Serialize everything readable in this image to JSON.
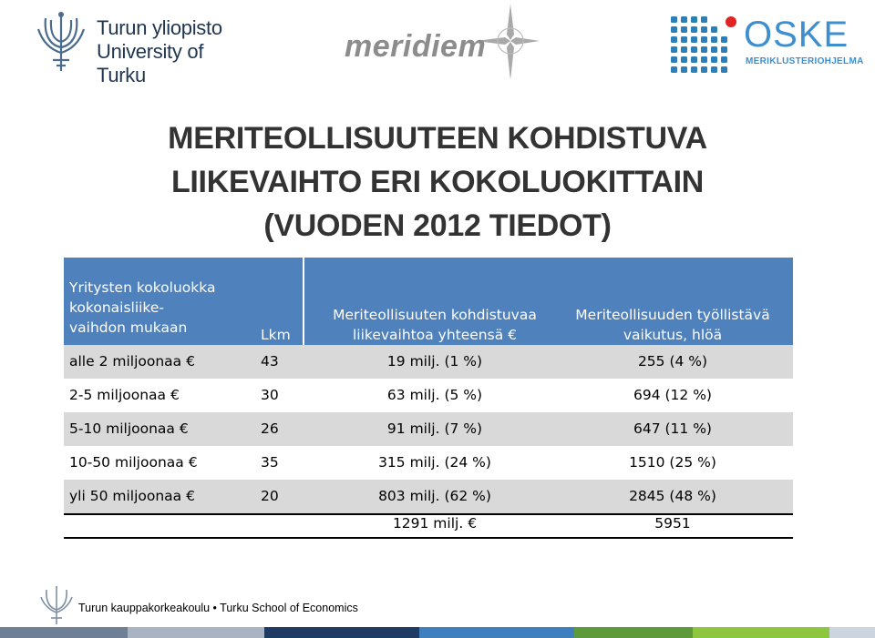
{
  "logos": {
    "utu": {
      "line1": "Turun yliopisto",
      "line2": "University of Turku"
    },
    "meridiem": {
      "text": "meridiem"
    },
    "oske": {
      "text": "OSKE",
      "subtitle": "MERIKLUSTERIOHJELMA"
    }
  },
  "title": {
    "line1": "MERITEOLLISUUTEEN KOHDISTUVA",
    "line2": "LIIKEVAIHTO ERI KOKOLUOKITTAIN",
    "line3": "(VUODEN 2012 TIEDOT)"
  },
  "table": {
    "headers": {
      "col1": [
        "Yritysten kokoluokka",
        "kokonaisliike-",
        "vaihdon mukaan"
      ],
      "col2": "Lkm",
      "col3": [
        "Meriteollisuuten kohdistuvaa",
        "liikevaihtoa yhteensä"
      ],
      "col4": [
        "Meriteollisuuden työllistävä",
        "vaikutus, hlöä"
      ]
    },
    "rows": [
      {
        "size": "alle 2 miljoonaa",
        "count": "43",
        "revenue": "19 milj.  (1 %)",
        "employment": "255 (4 %)"
      },
      {
        "size": "2-5 miljoonaa",
        "count": "30",
        "revenue": "63 milj.  (5 %)",
        "employment": "694 (12 %)"
      },
      {
        "size": "5-10 miljoonaa",
        "count": "26",
        "revenue": "91 milj.  (7 %)",
        "employment": "647 (11 %)"
      },
      {
        "size": "10-50 miljoonaa",
        "count": "35",
        "revenue": "315 milj.  (24 %)",
        "employment": "1510 (25 %)"
      },
      {
        "size": "yli 50 miljoonaa",
        "count": "20",
        "revenue": "803 milj.  (62 %)",
        "employment": "2845 (48 %)"
      }
    ],
    "total": {
      "revenue": "1291 milj. ",
      "employment": "5951"
    }
  },
  "footer": {
    "text": "Turun kauppakorkeakoulu • Turku School of Economics"
  },
  "colors": {
    "header_bg": "#4f81bd",
    "shade_row": "#d9d9d9",
    "footer_bar": [
      "#6e7f96",
      "#a8b4c2",
      "#1f3a63",
      "#3d7fbf",
      "#5c9a3a",
      "#8ec63f",
      "#cbd5df"
    ]
  },
  "icons": {
    "euro": "euro-symbol",
    "utu_logo": "trident-logo",
    "meridiem_logo": "compass-star-logo",
    "oske_logo": "dot-grid-logo"
  }
}
